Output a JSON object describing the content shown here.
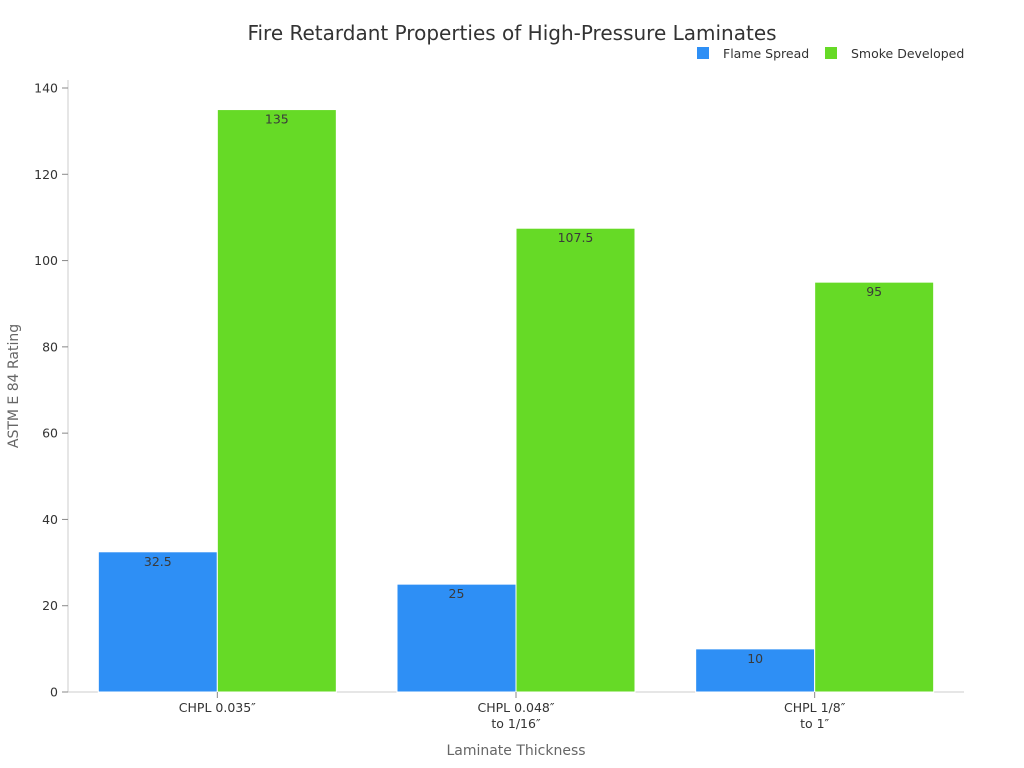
{
  "chart_data": {
    "type": "bar",
    "title": "Fire Retardant Properties of High-Pressure Laminates",
    "xlabel": "Laminate Thickness",
    "ylabel": "ASTM E 84 Rating",
    "ylim": [
      0,
      140
    ],
    "yticks": [
      0,
      20,
      40,
      60,
      80,
      100,
      120,
      140
    ],
    "grid": false,
    "legend_position": "top-right",
    "categories": [
      [
        "CHPL 0.035″"
      ],
      [
        "CHPL 0.048″",
        "to 1/16″"
      ],
      [
        "CHPL 1/8″",
        "to 1″"
      ]
    ],
    "series": [
      {
        "name": "Flame Spread",
        "color": "#2E8FF5",
        "values": [
          32.5,
          25,
          10
        ],
        "labels": [
          "32.5",
          "25",
          "10"
        ]
      },
      {
        "name": "Smoke Developed",
        "color": "#66DA26",
        "values": [
          135,
          107.5,
          95
        ],
        "labels": [
          "135",
          "107.5",
          "95"
        ]
      }
    ]
  }
}
